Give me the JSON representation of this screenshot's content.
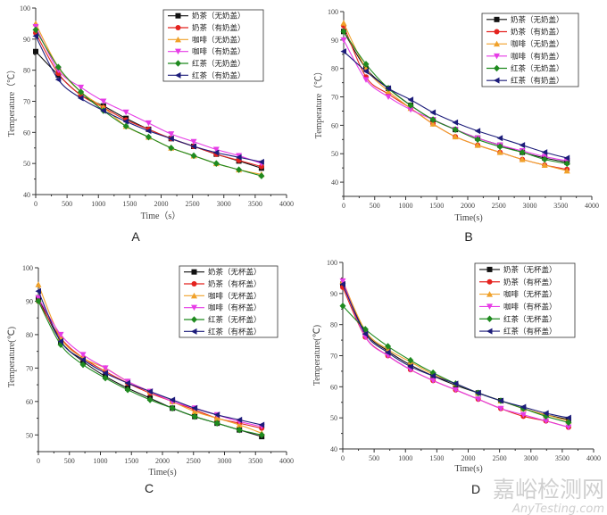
{
  "watermark": {
    "cn": "嘉峪检测网",
    "en": "AnyTesting.com"
  },
  "series_styles": [
    {
      "color": "#111111",
      "marker": "square"
    },
    {
      "color": "#e4231f",
      "marker": "circle"
    },
    {
      "color": "#f0a12a",
      "marker": "triangle-up"
    },
    {
      "color": "#e63ce6",
      "marker": "triangle-down"
    },
    {
      "color": "#1f8a1f",
      "marker": "diamond"
    },
    {
      "color": "#1c1c7a",
      "marker": "triangle-left"
    }
  ],
  "chart_data": [
    {
      "type": "line",
      "panel_label": "A",
      "xlabel": "Time（s）",
      "ylabel": "Temperature（℃）",
      "xlim": [
        0,
        4000
      ],
      "ylim": [
        40,
        100
      ],
      "xticks": [
        0,
        500,
        1000,
        1500,
        2000,
        2500,
        3000,
        3500,
        4000
      ],
      "yticks": [
        40,
        50,
        60,
        70,
        80,
        90,
        100
      ],
      "legend_position": "top-right",
      "x": [
        0,
        360,
        720,
        1080,
        1440,
        1800,
        2160,
        2520,
        2880,
        3240,
        3600
      ],
      "series": [
        {
          "name": "奶茶（无奶盖）",
          "values": [
            86,
            78.5,
            72,
            68.5,
            64.5,
            61,
            58,
            55.5,
            53,
            50.8,
            48.5
          ]
        },
        {
          "name": "奶茶（有奶盖）",
          "values": [
            92,
            79,
            72,
            68,
            64,
            61,
            58,
            55.5,
            53,
            51,
            49
          ]
        },
        {
          "name": "咖啡（无奶盖）",
          "values": [
            95,
            81,
            73,
            68,
            62,
            58.5,
            55,
            52.5,
            50,
            48,
            46.5
          ]
        },
        {
          "name": "咖啡（有奶盖）",
          "values": [
            94,
            80,
            74.5,
            70,
            66.5,
            63,
            59.5,
            57,
            54.5,
            52.5,
            50
          ]
        },
        {
          "name": "红茶（无奶盖）",
          "values": [
            93,
            81,
            73,
            67,
            62,
            58.5,
            55,
            52.5,
            50,
            48,
            46
          ]
        },
        {
          "name": "红茶（有奶盖）",
          "values": [
            91,
            77,
            71,
            67,
            63.5,
            60.5,
            58,
            55.5,
            53.5,
            52,
            50.5
          ]
        }
      ]
    },
    {
      "type": "line",
      "panel_label": "B",
      "xlabel": "Time(s)",
      "ylabel": "Temperature（℃）",
      "xlim": [
        0,
        4000
      ],
      "ylim": [
        35,
        100
      ],
      "xticks": [
        0,
        500,
        1000,
        1500,
        2000,
        2500,
        3000,
        3500,
        4000
      ],
      "yticks": [
        40,
        50,
        60,
        70,
        80,
        90,
        100
      ],
      "legend_position": "top-right",
      "x": [
        0,
        360,
        720,
        1080,
        1440,
        1800,
        2160,
        2520,
        2880,
        3240,
        3600
      ],
      "series": [
        {
          "name": "奶茶（无奶盖）",
          "values": [
            93,
            80,
            73,
            67,
            62,
            58.5,
            55.5,
            53,
            50.5,
            48.5,
            47
          ]
        },
        {
          "name": "奶茶（有奶盖）",
          "values": [
            95,
            77,
            71,
            66,
            60.5,
            56,
            53,
            50.5,
            48,
            46,
            44.5
          ]
        },
        {
          "name": "咖啡（无奶盖）",
          "values": [
            96,
            80,
            72,
            66,
            60.5,
            56,
            53,
            50.5,
            48,
            46,
            44
          ]
        },
        {
          "name": "咖啡（有奶盖）",
          "values": [
            90,
            76,
            70,
            65.5,
            62,
            58.5,
            55.5,
            53,
            51,
            49,
            47.5
          ]
        },
        {
          "name": "红茶（无奶盖）",
          "values": [
            93,
            81.5,
            73,
            67,
            62,
            58.5,
            55,
            52.5,
            50.5,
            48,
            46.5
          ]
        },
        {
          "name": "红茶（有奶盖）",
          "values": [
            86,
            79,
            73,
            69,
            64.5,
            61,
            58,
            55.5,
            53,
            50.5,
            48.5
          ]
        }
      ]
    },
    {
      "type": "line",
      "panel_label": "C",
      "xlabel": "Time(s)",
      "ylabel": "Temperature(℃)",
      "xlim": [
        0,
        4000
      ],
      "ylim": [
        45,
        100
      ],
      "xticks": [
        0,
        500,
        1000,
        1500,
        2000,
        2500,
        3000,
        3500,
        4000
      ],
      "yticks": [
        50,
        60,
        70,
        80,
        90,
        100
      ],
      "legend_position": "top-right",
      "x": [
        0,
        360,
        720,
        1080,
        1440,
        1800,
        2160,
        2520,
        2880,
        3240,
        3600
      ],
      "series": [
        {
          "name": "奶茶（无杯盖）",
          "values": [
            91,
            78,
            72,
            67.5,
            64,
            61,
            58,
            55.5,
            53.5,
            51.5,
            49.5
          ]
        },
        {
          "name": "奶茶（有杯盖）",
          "values": [
            90,
            79,
            73,
            69,
            65.5,
            62.5,
            60,
            57.5,
            55,
            53.5,
            52
          ]
        },
        {
          "name": "咖啡（无杯盖）",
          "values": [
            95,
            79,
            73,
            70,
            66,
            63,
            60,
            57,
            55,
            53,
            50.5
          ]
        },
        {
          "name": "咖啡（有杯盖）",
          "values": [
            91,
            80,
            74,
            70,
            66,
            63,
            60,
            58,
            56,
            54,
            52.5
          ]
        },
        {
          "name": "红茶（无杯盖）",
          "values": [
            90,
            77,
            71,
            67,
            63.5,
            60.5,
            58,
            55.5,
            53.5,
            51.5,
            50
          ]
        },
        {
          "name": "红茶（有杯盖）",
          "values": [
            93,
            78,
            72.5,
            68.5,
            65.5,
            63,
            60.5,
            58,
            56,
            54.5,
            53
          ]
        }
      ]
    },
    {
      "type": "line",
      "panel_label": "D",
      "xlabel": "Time(s)",
      "ylabel": "Temperature(℃)",
      "xlim": [
        0,
        4000
      ],
      "ylim": [
        40,
        100
      ],
      "xticks": [
        0,
        500,
        1000,
        1500,
        2000,
        2500,
        3000,
        3500,
        4000
      ],
      "yticks": [
        40,
        50,
        60,
        70,
        80,
        90,
        100
      ],
      "legend_position": "top-right",
      "x": [
        0,
        360,
        720,
        1080,
        1440,
        1800,
        2160,
        2520,
        2880,
        3240,
        3600
      ],
      "series": [
        {
          "name": "奶茶（无杯盖）",
          "values": [
            93,
            77.5,
            71.5,
            67,
            63.5,
            60.5,
            58,
            55.5,
            53,
            51,
            49.5
          ]
        },
        {
          "name": "奶茶（有杯盖）",
          "values": [
            92,
            76,
            70,
            65.5,
            62,
            59,
            56,
            53,
            50.5,
            49,
            47
          ]
        },
        {
          "name": "咖啡（无杯盖）",
          "values": [
            94,
            78,
            72,
            68,
            64,
            61,
            58,
            55.5,
            53,
            51,
            49
          ]
        },
        {
          "name": "咖啡（有杯盖）",
          "values": [
            94,
            76,
            70,
            65.5,
            62,
            59,
            56,
            53,
            51,
            49,
            47
          ]
        },
        {
          "name": "红茶（无杯盖）",
          "values": [
            86,
            78.5,
            73,
            68.5,
            64.5,
            61,
            58,
            55.5,
            53,
            50.5,
            48.5
          ]
        },
        {
          "name": "红茶（有杯盖）",
          "values": [
            93,
            77,
            71,
            66.5,
            63.5,
            61,
            58,
            55.5,
            53.5,
            51.5,
            50
          ]
        }
      ]
    }
  ]
}
